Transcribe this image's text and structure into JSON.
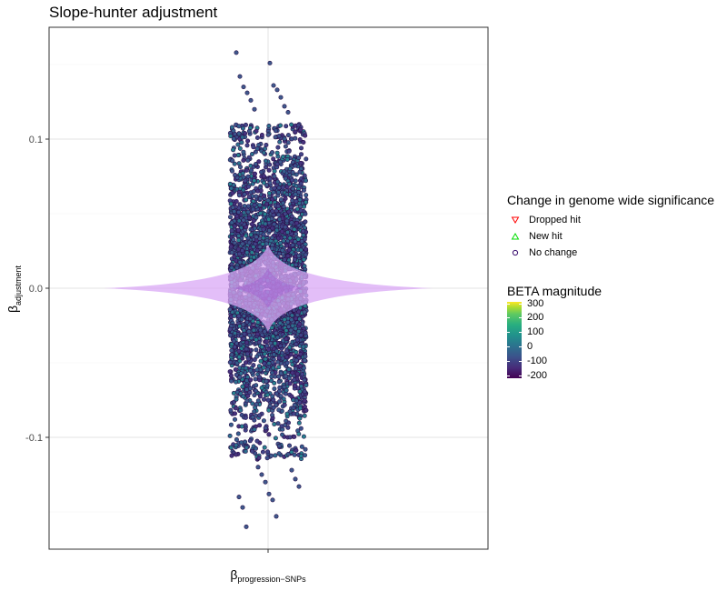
{
  "chart_data": {
    "type": "scatter",
    "title": "Slope-hunter adjustment",
    "ylabel_main": "β",
    "ylabel_sub": "adjustment",
    "xlabel_main": "β",
    "xlabel_sub": "progression−SNPs",
    "ylim": [
      -0.175,
      0.175
    ],
    "yticks": [
      {
        "value": 0.1,
        "label": "0.1"
      },
      {
        "value": 0.0,
        "label": "0.0"
      },
      {
        "value": -0.1,
        "label": "-0.1"
      }
    ],
    "y_minor_gridlines": [
      0.15,
      0.05,
      -0.05,
      -0.15
    ],
    "grid": true,
    "scatter_spread_ylim": [
      -0.115,
      0.11
    ],
    "extreme_points": [
      {
        "y": 0.158
      },
      {
        "y": 0.151
      },
      {
        "y": 0.142
      },
      {
        "y": 0.136
      },
      {
        "y": 0.135
      },
      {
        "y": 0.133
      },
      {
        "y": 0.131
      },
      {
        "y": 0.128
      },
      {
        "y": 0.126
      },
      {
        "y": 0.122
      },
      {
        "y": 0.12
      },
      {
        "y": 0.118
      },
      {
        "y": -0.12
      },
      {
        "y": -0.122
      },
      {
        "y": -0.125
      },
      {
        "y": -0.128
      },
      {
        "y": -0.13
      },
      {
        "y": -0.133
      },
      {
        "y": -0.138
      },
      {
        "y": -0.14
      },
      {
        "y": -0.142
      },
      {
        "y": -0.147
      },
      {
        "y": -0.153
      },
      {
        "y": -0.16
      }
    ],
    "violin_color": "#d9a8f5",
    "point_fill": "#3e5a8c",
    "point_outline": "#2a0f4a",
    "legend_shape": {
      "title": "Change in genome wide significance",
      "items": [
        {
          "label": "Dropped hit",
          "shape": "triangle-down",
          "color": "#ff0000"
        },
        {
          "label": "New hit",
          "shape": "triangle-up",
          "color": "#00dd00"
        },
        {
          "label": "No change",
          "shape": "circle",
          "color": "#3b0f70"
        }
      ]
    },
    "legend_color": {
      "title": "BETA magnitude",
      "scale": "viridis",
      "range": [
        -220,
        310
      ],
      "ticks": [
        {
          "value": 300,
          "label": "300"
        },
        {
          "value": 200,
          "label": "200"
        },
        {
          "value": 100,
          "label": "100"
        },
        {
          "value": 0,
          "label": "0"
        },
        {
          "value": -100,
          "label": "-100"
        },
        {
          "value": -200,
          "label": "-200"
        }
      ]
    }
  }
}
